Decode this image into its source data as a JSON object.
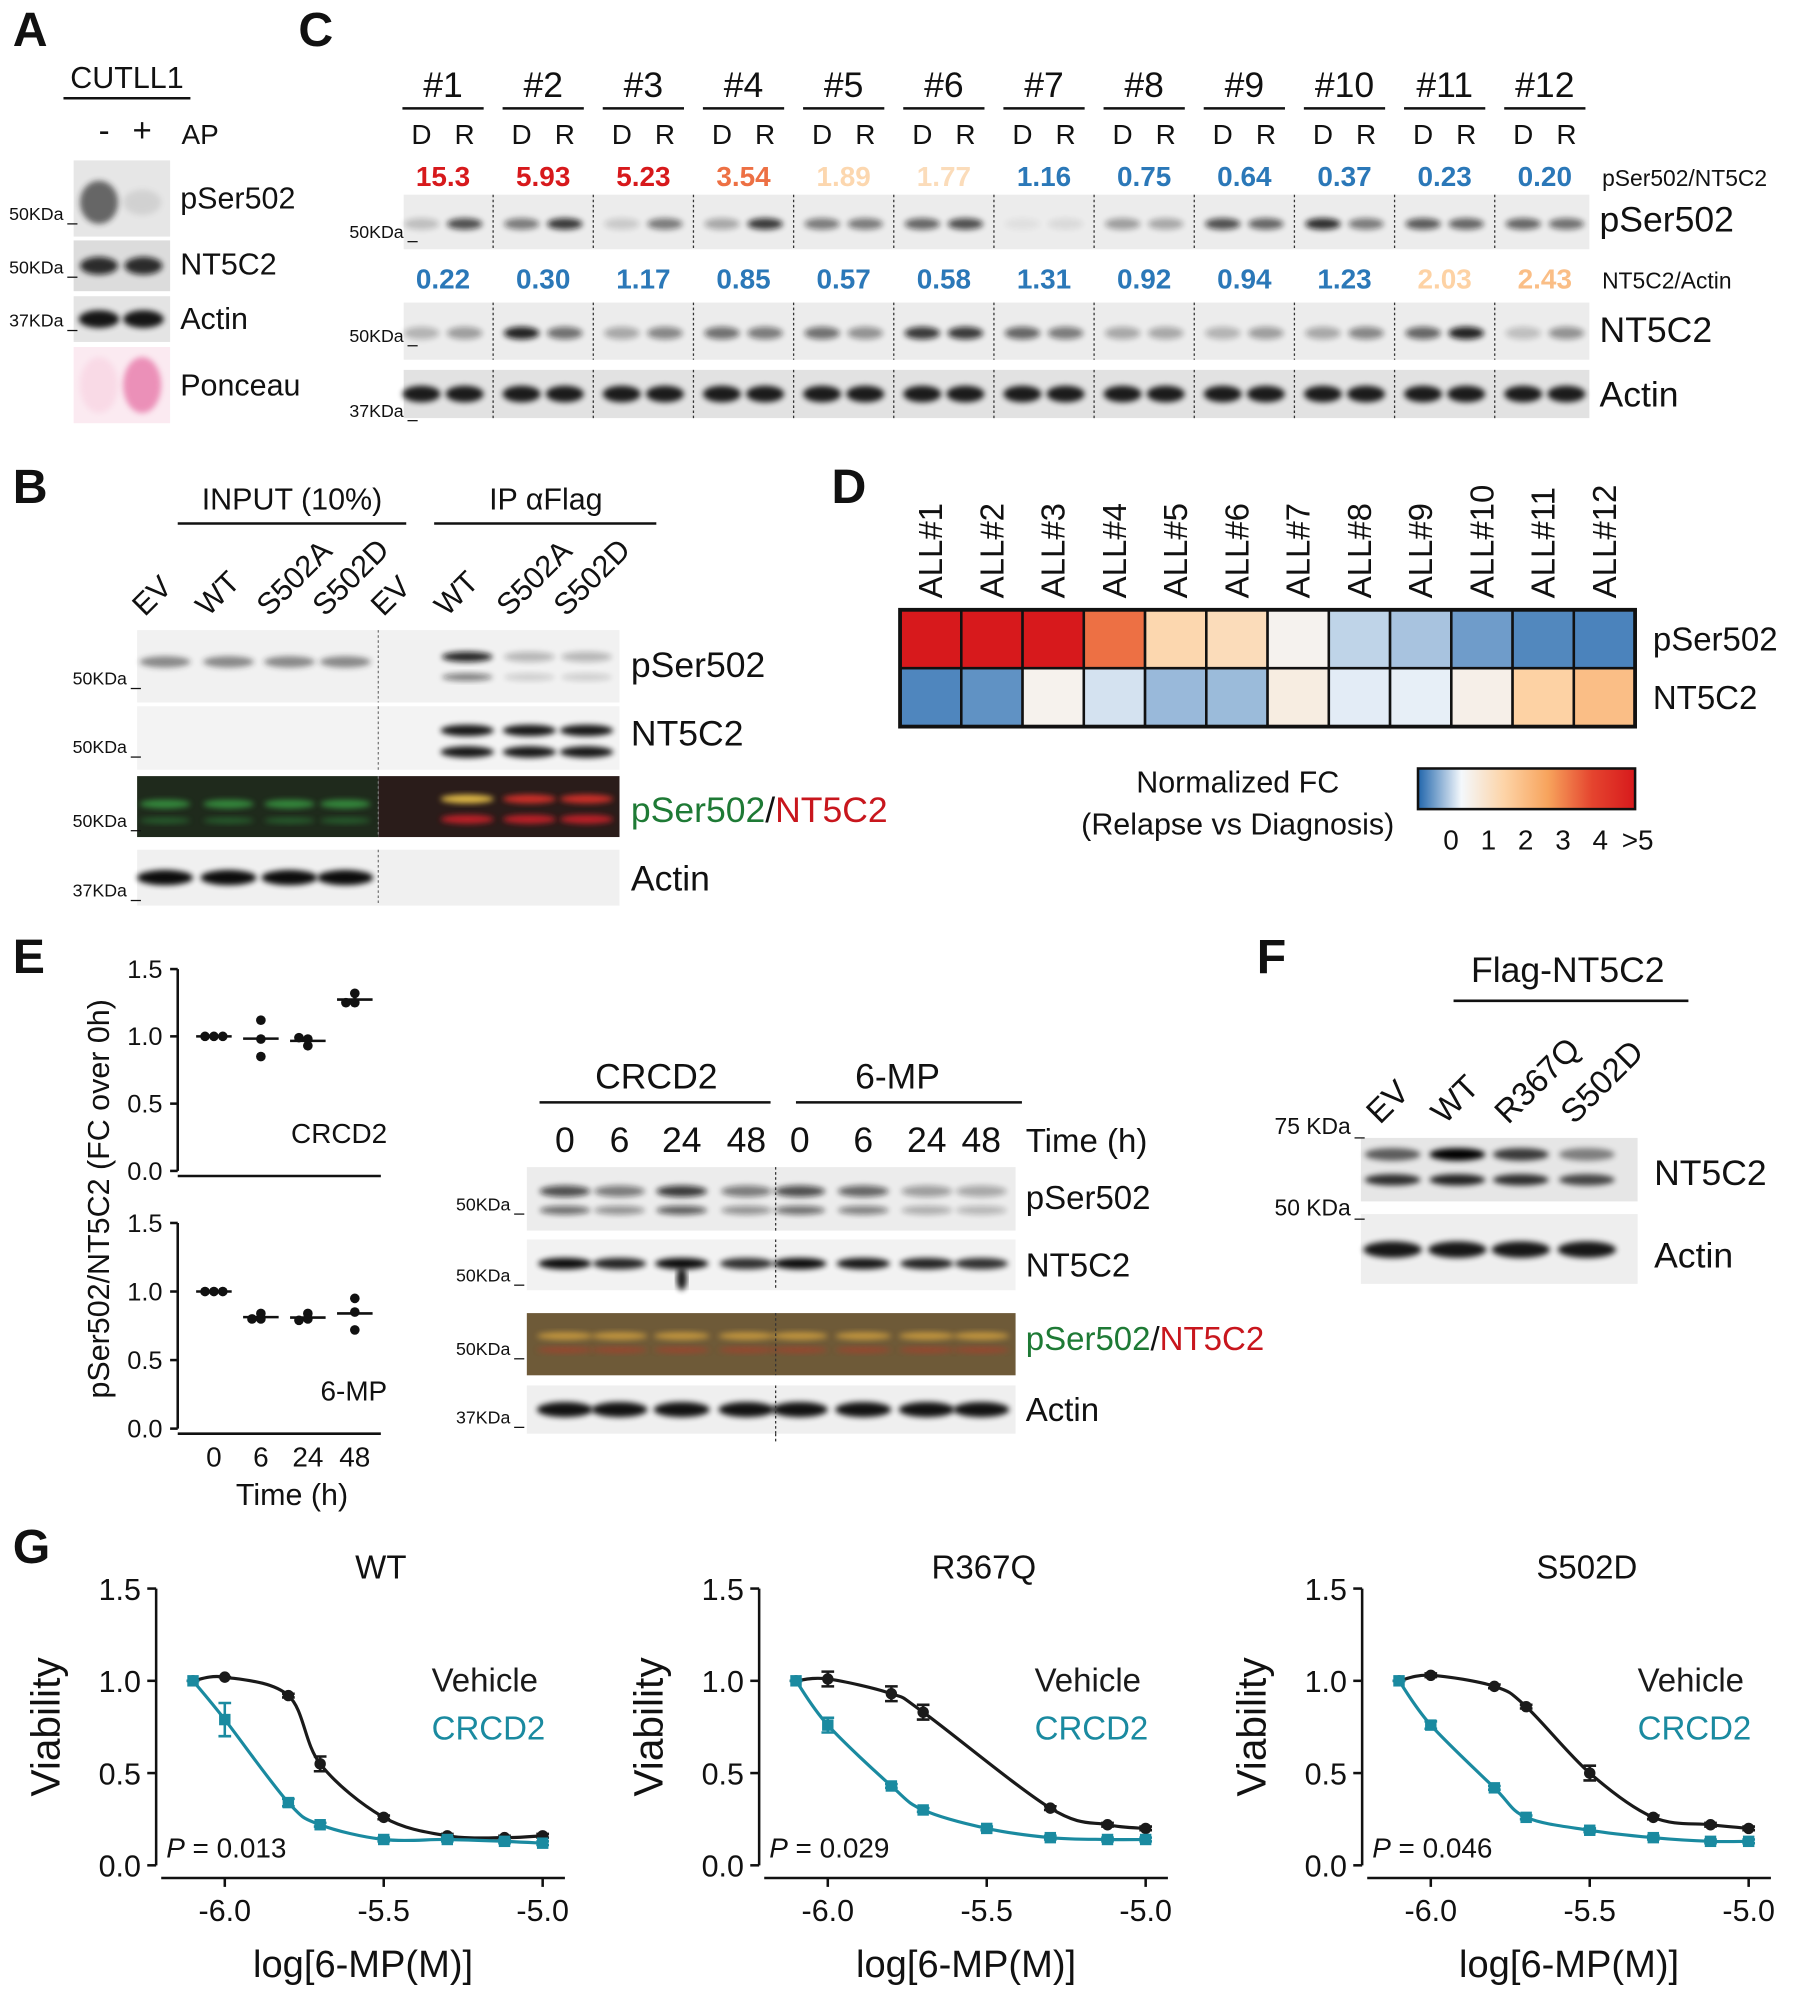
{
  "panel_labels": [
    "A",
    "B",
    "C",
    "D",
    "E",
    "F",
    "G"
  ],
  "panel_a": {
    "cell_line": "CUTLL1",
    "lanes": [
      "-",
      "+"
    ],
    "treatment": "AP",
    "markers": [
      "50KDa",
      "50KDa",
      "37KDa"
    ],
    "blots": [
      "pSer502",
      "NT5C2",
      "Actin",
      "Ponceau"
    ]
  },
  "panel_b": {
    "groups": [
      "INPUT (10%)",
      "IP αFlag"
    ],
    "lanes": [
      "EV",
      "WT",
      "S502A",
      "S502D",
      "EV",
      "WT",
      "S502A",
      "S502D"
    ],
    "markers": [
      "50KDa",
      "50KDa",
      "50KDa",
      "37KDa"
    ],
    "blots": [
      "pSer502",
      "NT5C2",
      "Actin"
    ],
    "merged_label": {
      "green": "pSer502",
      "separator": "/",
      "red": "NT5C2",
      "green_color": "#1e7a35",
      "red_color": "#c8161d"
    }
  },
  "panel_c": {
    "patients": [
      "#1",
      "#2",
      "#3",
      "#4",
      "#5",
      "#6",
      "#7",
      "#8",
      "#9",
      "#10",
      "#11",
      "#12"
    ],
    "lanes": [
      "D",
      "R"
    ],
    "ratio_labels": [
      "pSer502/NT5C2",
      "NT5C2/Actin"
    ],
    "markers": [
      "50KDa",
      "50KDa",
      "37KDa"
    ],
    "blots": [
      "pSer502",
      "NT5C2",
      "Actin"
    ]
  },
  "panel_e_blot": {
    "groups": [
      "CRCD2",
      "6-MP"
    ],
    "times": [
      "0",
      "6",
      "24",
      "48"
    ],
    "time_label": "Time (h)",
    "markers": [
      "50KDa",
      "50KDa",
      "50KDa",
      "37KDa"
    ],
    "blots": [
      "pSer502",
      "NT5C2",
      "Actin"
    ],
    "merged_label": {
      "green": "pSer502",
      "separator": "/",
      "red": "NT5C2",
      "green_color": "#1e7a35",
      "red_color": "#c8161d"
    }
  },
  "panel_f": {
    "group": "Flag-NT5C2",
    "lanes": [
      "EV",
      "WT",
      "R367Q",
      "S502D"
    ],
    "markers": [
      "75 KDa",
      "50 KDa"
    ],
    "blots": [
      "NT5C2",
      "Actin"
    ]
  },
  "chart_data": [
    {
      "type": "heatmap",
      "categories": [
        "ALL#1",
        "ALL#2",
        "ALL#3",
        "ALL#4",
        "ALL#5",
        "ALL#6",
        "ALL#7",
        "ALL#8",
        "ALL#9",
        "ALL#10",
        "ALL#11",
        "ALL#12"
      ],
      "rows": [
        {
          "name": "pSer502",
          "values": [
            15.3,
            5.93,
            5.23,
            3.54,
            1.89,
            1.77,
            1.16,
            0.75,
            0.64,
            0.37,
            0.23,
            0.2
          ],
          "value_labels": [
            "15.3",
            "5.93",
            "5.23",
            "3.54",
            "1.89",
            "1.77",
            "1.16",
            "0.75",
            "0.64",
            "0.37",
            "0.23",
            "0.20"
          ]
        },
        {
          "name": "NT5C2",
          "values": [
            0.22,
            0.3,
            1.17,
            0.85,
            0.57,
            0.58,
            1.31,
            0.92,
            0.94,
            1.23,
            2.03,
            2.43
          ],
          "value_labels": [
            "0.22",
            "0.30",
            "1.17",
            "0.85",
            "0.57",
            "0.58",
            "1.31",
            "0.92",
            "0.94",
            "1.23",
            "2.03",
            "2.43"
          ]
        }
      ],
      "colorbar": {
        "title": [
          "Normalized FC",
          "(Relapse vs Diagnosis)"
        ],
        "lim": [
          0,
          5
        ],
        "ticks": [
          0,
          1,
          2,
          3,
          4,
          {
            "value": 5,
            "label": ">5"
          }
        ],
        "colorscale": [
          [
            0,
            "#2166ac"
          ],
          [
            1,
            "#f4f8fc"
          ],
          [
            2,
            "#fdd3a6"
          ],
          [
            3,
            "#f7a35c"
          ],
          [
            4,
            "#e5452f"
          ],
          [
            5,
            "#d7191c"
          ]
        ]
      }
    },
    {
      "type": "dot",
      "ylabel": "pSer502/NT5C2 (FC over 0h)",
      "xlabel": "Time (h)",
      "categories": [
        "0",
        "6",
        "24",
        "48"
      ],
      "ylim": [
        0,
        1.5
      ],
      "yticks": [
        {
          "value": 0,
          "label": "0.0"
        },
        {
          "value": 0.5,
          "label": "0.5"
        },
        {
          "value": 1,
          "label": "1.0"
        },
        {
          "value": 1.5,
          "label": "1.5"
        }
      ],
      "panels": [
        {
          "annotation": "CRCD2",
          "values": [
            [
              1,
              1,
              1
            ],
            [
              1.12,
              0.98,
              0.85
            ],
            [
              0.99,
              0.93,
              0.98
            ],
            [
              1.32,
              1.25,
              1.25
            ]
          ]
        },
        {
          "annotation": "6-MP",
          "values": [
            [
              1,
              1,
              1
            ],
            [
              0.84,
              0.8,
              0.8
            ],
            [
              0.84,
              0.79,
              0.8
            ],
            [
              0.95,
              0.85,
              0.72
            ]
          ]
        }
      ]
    },
    {
      "type": "line",
      "title": "WT",
      "xlabel": "log[6-MP(M)]",
      "ylabel": "Viability",
      "legend": "upper right",
      "xlim": [
        -6.2,
        -4.93
      ],
      "xticks": [
        {
          "value": -6,
          "label": "-6.0"
        },
        {
          "value": -5.5,
          "label": "-5.5"
        },
        {
          "value": -5,
          "label": "-5.0"
        }
      ],
      "ylim": [
        0,
        1.5
      ],
      "yticks": [
        {
          "value": 0,
          "label": "0.0"
        },
        {
          "value": 0.5,
          "label": "0.5"
        },
        {
          "value": 1,
          "label": "1.0"
        },
        {
          "value": 1.5,
          "label": "1.5"
        }
      ],
      "annotation": {
        "italic": "P",
        "text": "= 0.013"
      },
      "series": [
        {
          "name": "Vehicle",
          "color": "#1a1a1a",
          "marker": "circle",
          "x": [
            -6.1,
            -6.0,
            -5.8,
            -5.7,
            -5.5,
            -5.3,
            -5.12,
            -5.0
          ],
          "values": [
            1.0,
            1.02,
            0.92,
            0.55,
            0.26,
            0.16,
            0.15,
            0.16
          ],
          "errors": [
            0,
            0,
            0.01,
            0.04,
            0.01,
            0.01,
            0.01,
            0.01
          ]
        },
        {
          "name": "CRCD2",
          "color": "#1a8aa0",
          "marker": "square",
          "x": [
            -6.1,
            -6.0,
            -5.8,
            -5.7,
            -5.5,
            -5.3,
            -5.12,
            -5.0
          ],
          "values": [
            1.0,
            0.79,
            0.34,
            0.22,
            0.14,
            0.14,
            0.13,
            0.12
          ],
          "errors": [
            0,
            0.09,
            0.02,
            0.01,
            0.01,
            0.01,
            0.01,
            0.01
          ]
        }
      ]
    },
    {
      "type": "line",
      "title": "R367Q",
      "xlabel": "log[6-MP(M)]",
      "ylabel": "Viability",
      "legend": "upper right",
      "xlim": [
        -6.2,
        -4.93
      ],
      "xticks": [
        {
          "value": -6,
          "label": "-6.0"
        },
        {
          "value": -5.5,
          "label": "-5.5"
        },
        {
          "value": -5,
          "label": "-5.0"
        }
      ],
      "ylim": [
        0,
        1.5
      ],
      "yticks": [
        {
          "value": 0,
          "label": "0.0"
        },
        {
          "value": 0.5,
          "label": "0.5"
        },
        {
          "value": 1,
          "label": "1.0"
        },
        {
          "value": 1.5,
          "label": "1.5"
        }
      ],
      "annotation": {
        "italic": "P",
        "text": "= 0.029"
      },
      "series": [
        {
          "name": "Vehicle",
          "color": "#1a1a1a",
          "marker": "circle",
          "x": [
            -6.1,
            -6.0,
            -5.8,
            -5.7,
            -5.3,
            -5.12,
            -5.0
          ],
          "values": [
            1.0,
            1.01,
            0.93,
            0.83,
            0.31,
            0.22,
            0.2
          ],
          "errors": [
            0,
            0.04,
            0.04,
            0.04,
            0.01,
            0.01,
            0.01
          ]
        },
        {
          "name": "CRCD2",
          "color": "#1a8aa0",
          "marker": "square",
          "x": [
            -6.1,
            -6.0,
            -5.8,
            -5.7,
            -5.5,
            -5.3,
            -5.12,
            -5.0
          ],
          "values": [
            1.0,
            0.76,
            0.43,
            0.3,
            0.2,
            0.15,
            0.14,
            0.14
          ],
          "errors": [
            0,
            0.04,
            0.01,
            0.01,
            0.01,
            0.01,
            0.01,
            0.01
          ]
        }
      ]
    },
    {
      "type": "line",
      "title": "S502D",
      "xlabel": "log[6-MP(M)]",
      "ylabel": "Viability",
      "legend": "upper right",
      "xlim": [
        -6.2,
        -4.93
      ],
      "xticks": [
        {
          "value": -6,
          "label": "-6.0"
        },
        {
          "value": -5.5,
          "label": "-5.5"
        },
        {
          "value": -5,
          "label": "-5.0"
        }
      ],
      "ylim": [
        0,
        1.5
      ],
      "yticks": [
        {
          "value": 0,
          "label": "0.0"
        },
        {
          "value": 0.5,
          "label": "0.5"
        },
        {
          "value": 1,
          "label": "1.0"
        },
        {
          "value": 1.5,
          "label": "1.5"
        }
      ],
      "annotation": {
        "italic": "P",
        "text": "= 0.046"
      },
      "series": [
        {
          "name": "Vehicle",
          "color": "#1a1a1a",
          "marker": "circle",
          "x": [
            -6.1,
            -6.0,
            -5.8,
            -5.7,
            -5.5,
            -5.3,
            -5.12,
            -5.0
          ],
          "values": [
            1.0,
            1.03,
            0.97,
            0.86,
            0.5,
            0.26,
            0.22,
            0.2
          ],
          "errors": [
            0,
            0.01,
            0.01,
            0.01,
            0.04,
            0.01,
            0.01,
            0.01
          ]
        },
        {
          "name": "CRCD2",
          "color": "#1a8aa0",
          "marker": "square",
          "x": [
            -6.1,
            -6.0,
            -5.8,
            -5.7,
            -5.5,
            -5.3,
            -5.12,
            -5.0
          ],
          "values": [
            1.0,
            0.76,
            0.42,
            0.26,
            0.19,
            0.15,
            0.13,
            0.13
          ],
          "errors": [
            0,
            0.02,
            0.01,
            0.01,
            0.01,
            0.01,
            0.01,
            0.01
          ]
        }
      ]
    }
  ]
}
